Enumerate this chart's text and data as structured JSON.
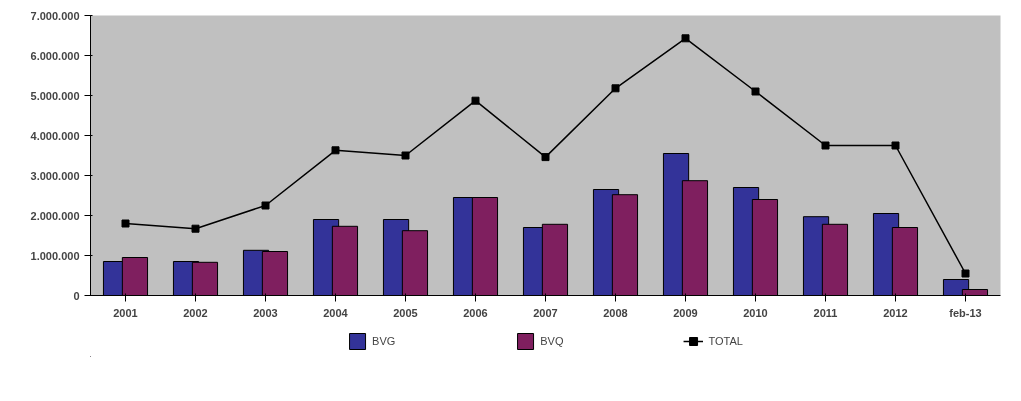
{
  "chart_data": {
    "type": "bar",
    "categories": [
      "2001",
      "2002",
      "2003",
      "2004",
      "2005",
      "2006",
      "2007",
      "2008",
      "2009",
      "2010",
      "2011",
      "2012",
      "feb-13"
    ],
    "series": [
      {
        "name": "BVG",
        "color": "#333399",
        "values": [
          850000,
          850000,
          1130000,
          1900000,
          1900000,
          2450000,
          1700000,
          2650000,
          3550000,
          2700000,
          1970000,
          2050000,
          400000
        ]
      },
      {
        "name": "BVQ",
        "color": "#7f1f5f",
        "values": [
          950000,
          830000,
          1100000,
          1730000,
          1620000,
          2450000,
          1780000,
          2520000,
          2870000,
          2400000,
          1780000,
          1700000,
          150000
        ]
      },
      {
        "name": "TOTAL",
        "type": "line",
        "color": "#000000",
        "marker": "square",
        "values": [
          1800000,
          1670000,
          2250000,
          3630000,
          3500000,
          4870000,
          3460000,
          5180000,
          6430000,
          5100000,
          3750000,
          3750000,
          550000
        ]
      }
    ],
    "ylim": [
      0,
      7000000
    ],
    "yticks": [
      {
        "value": 0,
        "label": "0"
      },
      {
        "value": 1000000,
        "label": "1.000.000"
      },
      {
        "value": 2000000,
        "label": "2.000.000"
      },
      {
        "value": 3000000,
        "label": "3.000.000"
      },
      {
        "value": 4000000,
        "label": "4.000.000"
      },
      {
        "value": 5000000,
        "label": "5.000.000"
      },
      {
        "value": 6000000,
        "label": "6.000.000"
      },
      {
        "value": 7000000,
        "label": "7.000.000"
      }
    ],
    "grid": false,
    "legend": "bottom"
  }
}
